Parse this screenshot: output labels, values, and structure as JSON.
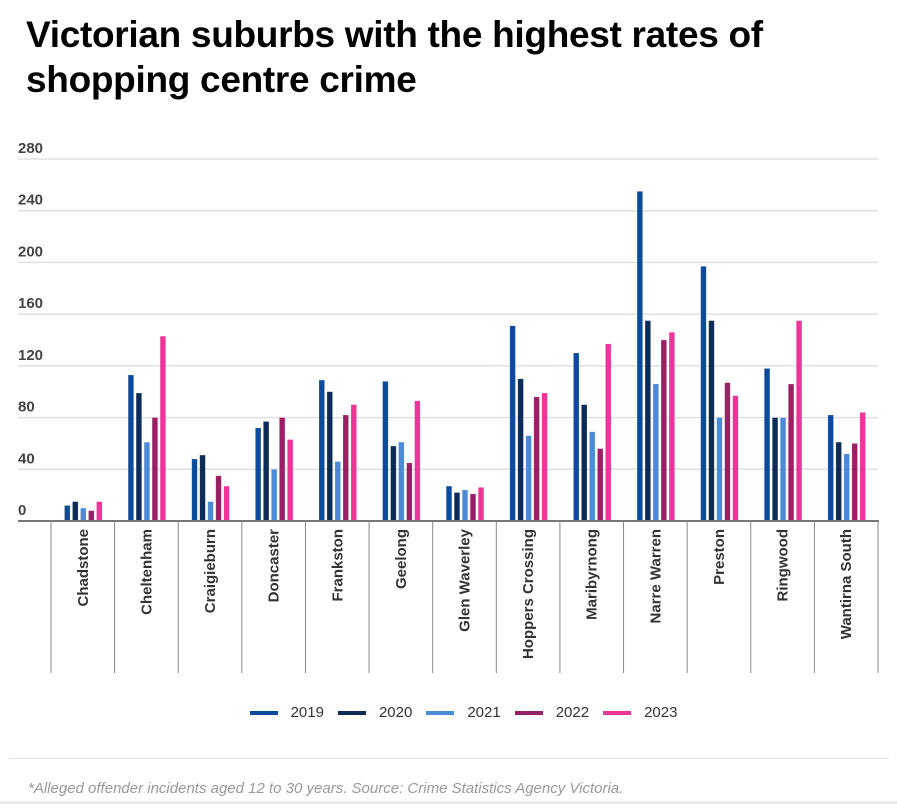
{
  "chart_data": {
    "type": "bar",
    "title": "Victorian suburbs with the highest rates of shopping centre crime",
    "xlabel": "",
    "ylabel": "",
    "ylim": [
      0,
      280
    ],
    "yticks": [
      0,
      40,
      80,
      120,
      160,
      200,
      240,
      280
    ],
    "grid": true,
    "legend_position": "bottom",
    "categories": [
      "Chadstone",
      "Cheltenham",
      "Craigieburn",
      "Doncaster",
      "Frankston",
      "Geelong",
      "Glen Waverley",
      "Hoppers Crossing",
      "Maribyrnong",
      "Narre Warren",
      "Preston",
      "Ringwood",
      "Wantirna South"
    ],
    "series": [
      {
        "name": "2019",
        "color": "#0b4a9c",
        "values": [
          12,
          113,
          48,
          72,
          109,
          108,
          27,
          151,
          130,
          255,
          197,
          118,
          82
        ]
      },
      {
        "name": "2020",
        "color": "#0d2b57",
        "values": [
          15,
          99,
          51,
          77,
          100,
          58,
          22,
          110,
          90,
          155,
          155,
          80,
          61
        ]
      },
      {
        "name": "2021",
        "color": "#4a8ad6",
        "values": [
          10,
          61,
          15,
          40,
          46,
          61,
          24,
          66,
          69,
          106,
          80,
          80,
          52
        ]
      },
      {
        "name": "2022",
        "color": "#9b1f64",
        "values": [
          8,
          80,
          35,
          80,
          82,
          45,
          21,
          96,
          56,
          140,
          107,
          106,
          60
        ]
      },
      {
        "name": "2023",
        "color": "#ee3399",
        "values": [
          15,
          143,
          27,
          63,
          90,
          93,
          26,
          99,
          137,
          146,
          97,
          155,
          84
        ]
      }
    ]
  },
  "footer": {
    "note": "*Alleged offender incidents aged 12 to 30 years. Source: Crime Statistics Agency Victoria."
  }
}
